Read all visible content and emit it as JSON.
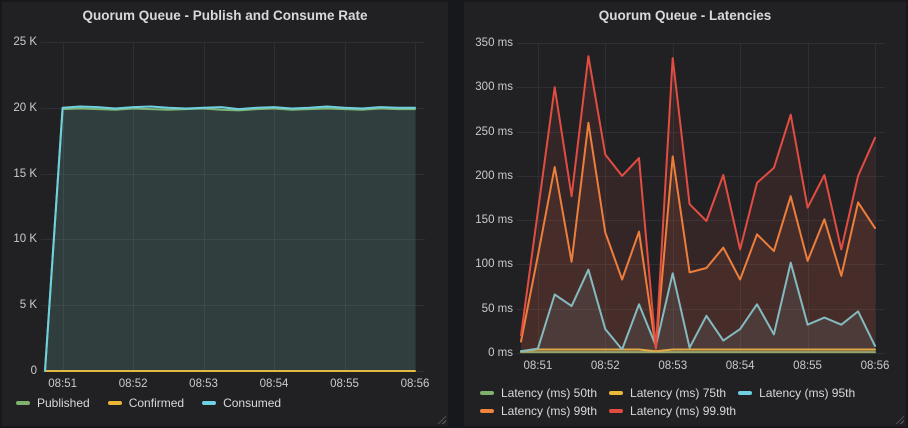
{
  "panels": [
    {
      "title": "Quorum Queue - Publish and Consume Rate"
    },
    {
      "title": "Quorum Queue - Latencies"
    }
  ],
  "colors": {
    "green": "#7EB26D",
    "yellow": "#EAB839",
    "cyan": "#6ED0E0",
    "orange": "#EF843C",
    "red": "#E24D42",
    "panel_bg": "#212124",
    "page_bg": "#17181b",
    "grid": "#2e2f34",
    "text": "#d8d9da",
    "tick_text": "#c9cacc"
  },
  "chart_data": [
    {
      "type": "area",
      "title": "Quorum Queue - Publish and Consume Rate",
      "legend_position": "bottom",
      "grid": true,
      "x_interval": "15s",
      "x": [
        "08:50:45",
        "08:51:00",
        "08:51:15",
        "08:51:30",
        "08:51:45",
        "08:52:00",
        "08:52:15",
        "08:52:30",
        "08:52:45",
        "08:53:00",
        "08:53:15",
        "08:53:30",
        "08:53:45",
        "08:54:00",
        "08:54:15",
        "08:54:30",
        "08:54:45",
        "08:55:00",
        "08:55:15",
        "08:55:30",
        "08:55:45",
        "08:56:00"
      ],
      "xticks": [
        "08:51",
        "08:52",
        "08:53",
        "08:54",
        "08:55",
        "08:56"
      ],
      "ylim": [
        0,
        25000
      ],
      "yticks": [
        {
          "value": 0,
          "label": "0"
        },
        {
          "value": 5000,
          "label": "5 K"
        },
        {
          "value": 10000,
          "label": "10 K"
        },
        {
          "value": 15000,
          "label": "15 K"
        },
        {
          "value": 20000,
          "label": "20 K"
        },
        {
          "value": 25000,
          "label": "25 K"
        }
      ],
      "series": [
        {
          "name": "Published",
          "color": "#7EB26D",
          "values": [
            0,
            19900,
            19950,
            19900,
            19850,
            19950,
            19900,
            19850,
            19900,
            19950,
            19850,
            19800,
            19900,
            19950,
            19850,
            19900,
            19950,
            19900,
            19850,
            19950,
            19900,
            19900
          ]
        },
        {
          "name": "Confirmed",
          "color": "#EAB839",
          "values": [
            0,
            0,
            0,
            0,
            0,
            0,
            0,
            0,
            0,
            0,
            0,
            0,
            0,
            0,
            0,
            0,
            0,
            0,
            0,
            0,
            0,
            0
          ]
        },
        {
          "name": "Consumed",
          "color": "#6ED0E0",
          "values": [
            0,
            20000,
            20100,
            20050,
            19950,
            20050,
            20100,
            20000,
            19950,
            20000,
            20050,
            19900,
            20000,
            20050,
            19950,
            20000,
            20100,
            20000,
            19950,
            20050,
            20000,
            20000
          ]
        }
      ]
    },
    {
      "type": "line",
      "title": "Quorum Queue - Latencies",
      "legend_position": "bottom",
      "grid": true,
      "x_interval": "15s",
      "x": [
        "08:50:45",
        "08:51:00",
        "08:51:15",
        "08:51:30",
        "08:51:45",
        "08:52:00",
        "08:52:15",
        "08:52:30",
        "08:52:45",
        "08:53:00",
        "08:53:15",
        "08:53:30",
        "08:53:45",
        "08:54:00",
        "08:54:15",
        "08:54:30",
        "08:54:45",
        "08:55:00",
        "08:55:15",
        "08:55:30",
        "08:55:45",
        "08:56:00"
      ],
      "xticks": [
        "08:51",
        "08:52",
        "08:53",
        "08:54",
        "08:55",
        "08:56"
      ],
      "ylim": [
        0,
        350
      ],
      "yticks": [
        {
          "value": 0,
          "label": "0 ms"
        },
        {
          "value": 50,
          "label": "50 ms"
        },
        {
          "value": 100,
          "label": "100 ms"
        },
        {
          "value": 150,
          "label": "150 ms"
        },
        {
          "value": 200,
          "label": "200 ms"
        },
        {
          "value": 250,
          "label": "250 ms"
        },
        {
          "value": 300,
          "label": "300 ms"
        },
        {
          "value": 350,
          "label": "350 ms"
        }
      ],
      "series": [
        {
          "name": "Latency (ms) 50th",
          "color": "#7EB26D",
          "values": [
            1,
            1,
            1,
            1,
            1,
            1,
            1,
            1,
            1,
            1,
            1,
            1,
            1,
            1,
            1,
            1,
            1,
            1,
            1,
            1,
            1,
            1
          ]
        },
        {
          "name": "Latency (ms) 75th",
          "color": "#EAB839",
          "values": [
            2,
            4,
            4,
            4,
            4,
            4,
            4,
            4,
            2,
            4,
            4,
            4,
            4,
            4,
            4,
            4,
            4,
            4,
            4,
            4,
            4,
            4
          ]
        },
        {
          "name": "Latency (ms) 95th",
          "color": "#6ED0E0",
          "values": [
            2,
            5,
            66,
            53,
            94,
            27,
            4,
            55,
            8,
            90,
            6,
            42,
            14,
            27,
            55,
            21,
            102,
            32,
            40,
            32,
            47,
            8
          ]
        },
        {
          "name": "Latency (ms) 99th",
          "color": "#EF843C",
          "values": [
            13,
            110,
            210,
            103,
            260,
            136,
            83,
            137,
            5,
            222,
            91,
            96,
            119,
            83,
            134,
            115,
            177,
            104,
            151,
            87,
            170,
            141
          ]
        },
        {
          "name": "Latency (ms) 99.9th",
          "color": "#E24D42",
          "values": [
            20,
            160,
            300,
            177,
            335,
            224,
            200,
            220,
            5,
            333,
            168,
            149,
            201,
            117,
            192,
            209,
            269,
            164,
            201,
            117,
            200,
            243
          ]
        }
      ]
    }
  ]
}
